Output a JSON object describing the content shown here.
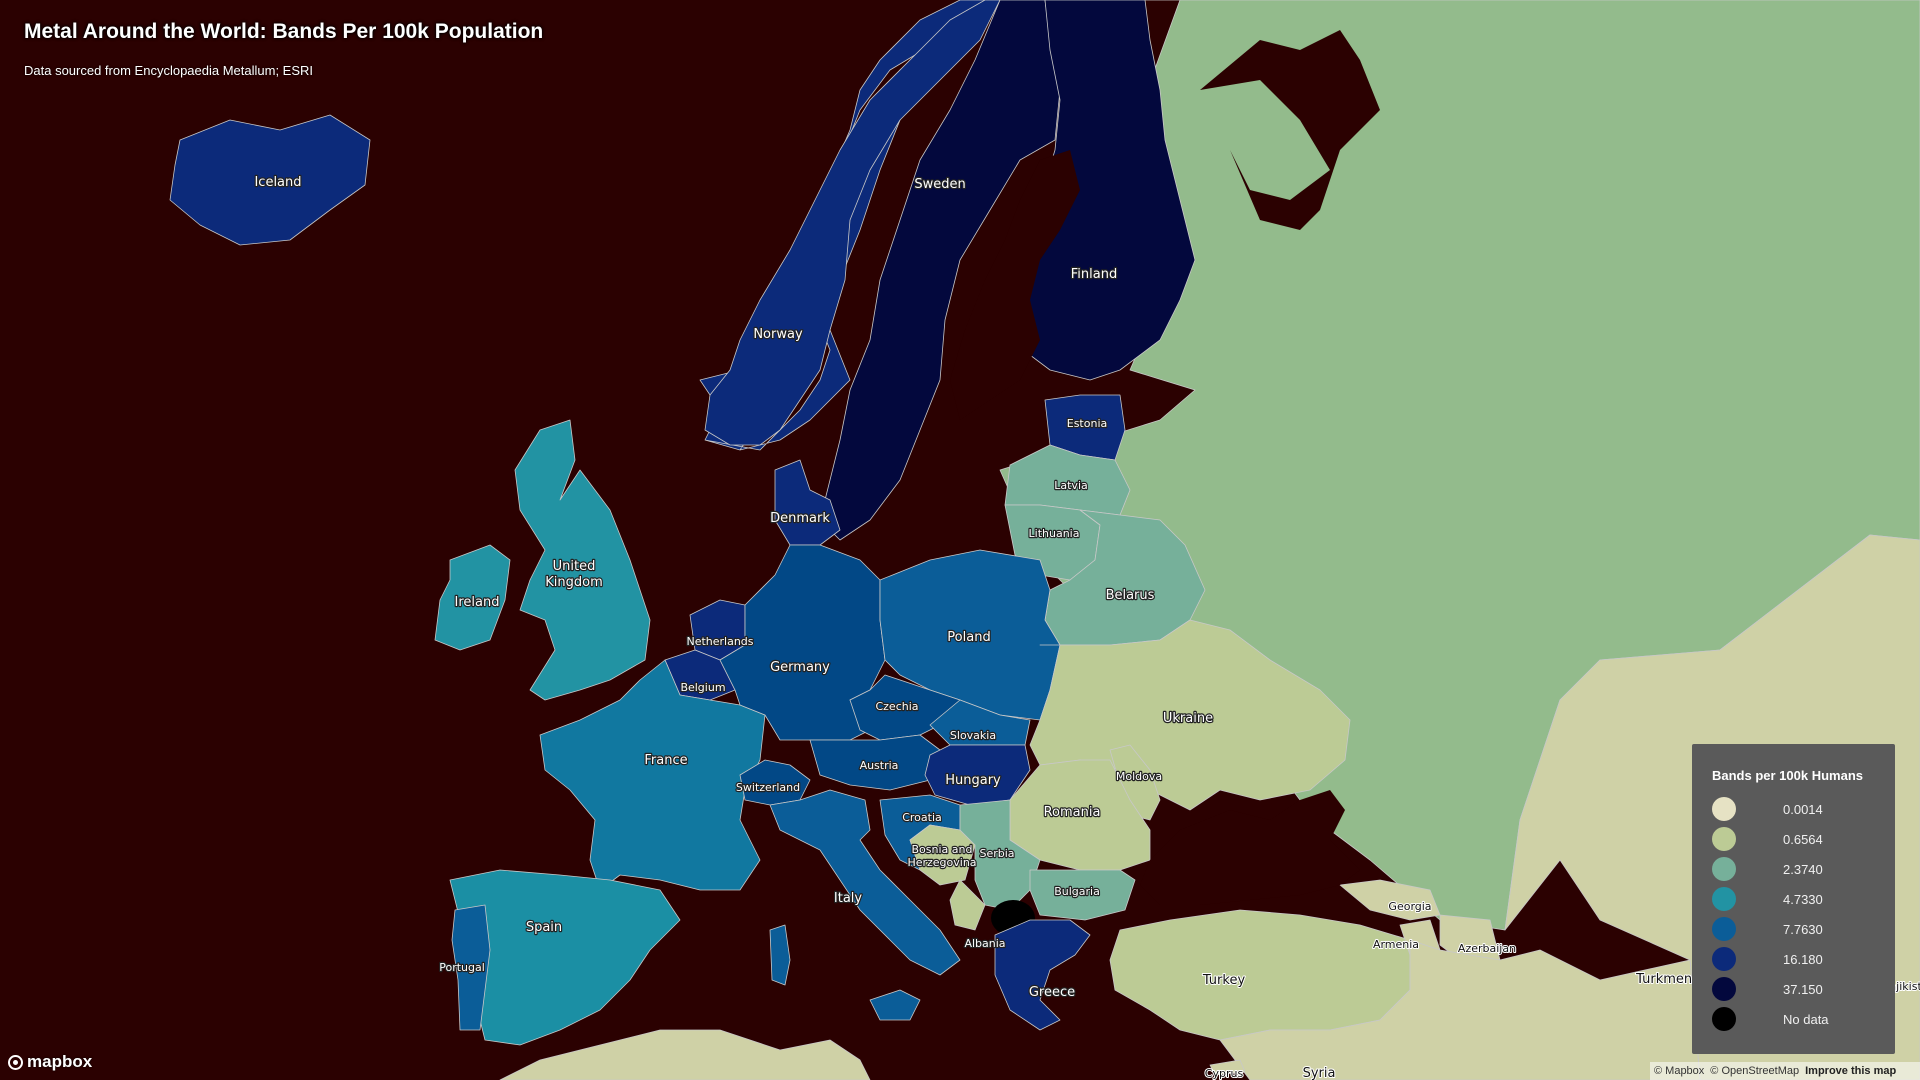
{
  "header": {
    "title": "Metal Around the World: Bands Per 100k Population",
    "subtitle": "Data sourced from Encyclopaedia Metallum; ESRI"
  },
  "colors": {
    "sea": "#2b0101",
    "bin_0": "#dcd8b8",
    "bin_1": "#bccb95",
    "bin_2": "#76b09a",
    "bin_3": "#2293a3",
    "bin_4": "#0b5d98",
    "bin_5": "#0c2a7a",
    "bin_6": "#03083d",
    "no_data": "#000000",
    "russia": "#93bb8c",
    "far_east": "#cfd1a6",
    "legend_bg": "#5a5a5a"
  },
  "legend": {
    "title": "Bands per 100k Humans",
    "items": [
      {
        "label": "0.0014",
        "color": "#e6e2c4"
      },
      {
        "label": "0.6564",
        "color": "#bccb95"
      },
      {
        "label": "2.3740",
        "color": "#76b09a"
      },
      {
        "label": "4.7330",
        "color": "#2293a3"
      },
      {
        "label": "7.7630",
        "color": "#0b5d98"
      },
      {
        "label": "16.180",
        "color": "#0c2a7a"
      },
      {
        "label": "37.150",
        "color": "#03083d"
      },
      {
        "label": "No data",
        "color": "#000000"
      }
    ]
  },
  "countries": [
    {
      "name": "Iceland"
    },
    {
      "name": "Sweden"
    },
    {
      "name": "Finland"
    },
    {
      "name": "Norway"
    },
    {
      "name": "Estonia"
    },
    {
      "name": "Latvia"
    },
    {
      "name": "Lithuania"
    },
    {
      "name": "Denmark"
    },
    {
      "name": "United Kingdom"
    },
    {
      "name": "Ireland"
    },
    {
      "name": "Belarus"
    },
    {
      "name": "Poland"
    },
    {
      "name": "Netherlands"
    },
    {
      "name": "Germany"
    },
    {
      "name": "Belgium"
    },
    {
      "name": "Czechia"
    },
    {
      "name": "Ukraine"
    },
    {
      "name": "France"
    },
    {
      "name": "Slovakia"
    },
    {
      "name": "Austria"
    },
    {
      "name": "Hungary"
    },
    {
      "name": "Switzerland"
    },
    {
      "name": "Moldova"
    },
    {
      "name": "Romania"
    },
    {
      "name": "Croatia"
    },
    {
      "name": "Bosnia and Herzegovina"
    },
    {
      "name": "Serbia"
    },
    {
      "name": "Italy"
    },
    {
      "name": "Bulgaria"
    },
    {
      "name": "Spain"
    },
    {
      "name": "Georgia"
    },
    {
      "name": "Portugal"
    },
    {
      "name": "Albania"
    },
    {
      "name": "Armenia"
    },
    {
      "name": "Azerbaijan"
    },
    {
      "name": "Greece"
    },
    {
      "name": "Turkey"
    },
    {
      "name": "Turkmenistan"
    },
    {
      "name": "Tajikistan"
    },
    {
      "name": "Cyprus"
    },
    {
      "name": "Syria"
    }
  ],
  "footer": {
    "logo": "mapbox",
    "attribution_mapbox": "© Mapbox",
    "attribution_osm": "© OpenStreetMap",
    "improve": "Improve this map"
  }
}
